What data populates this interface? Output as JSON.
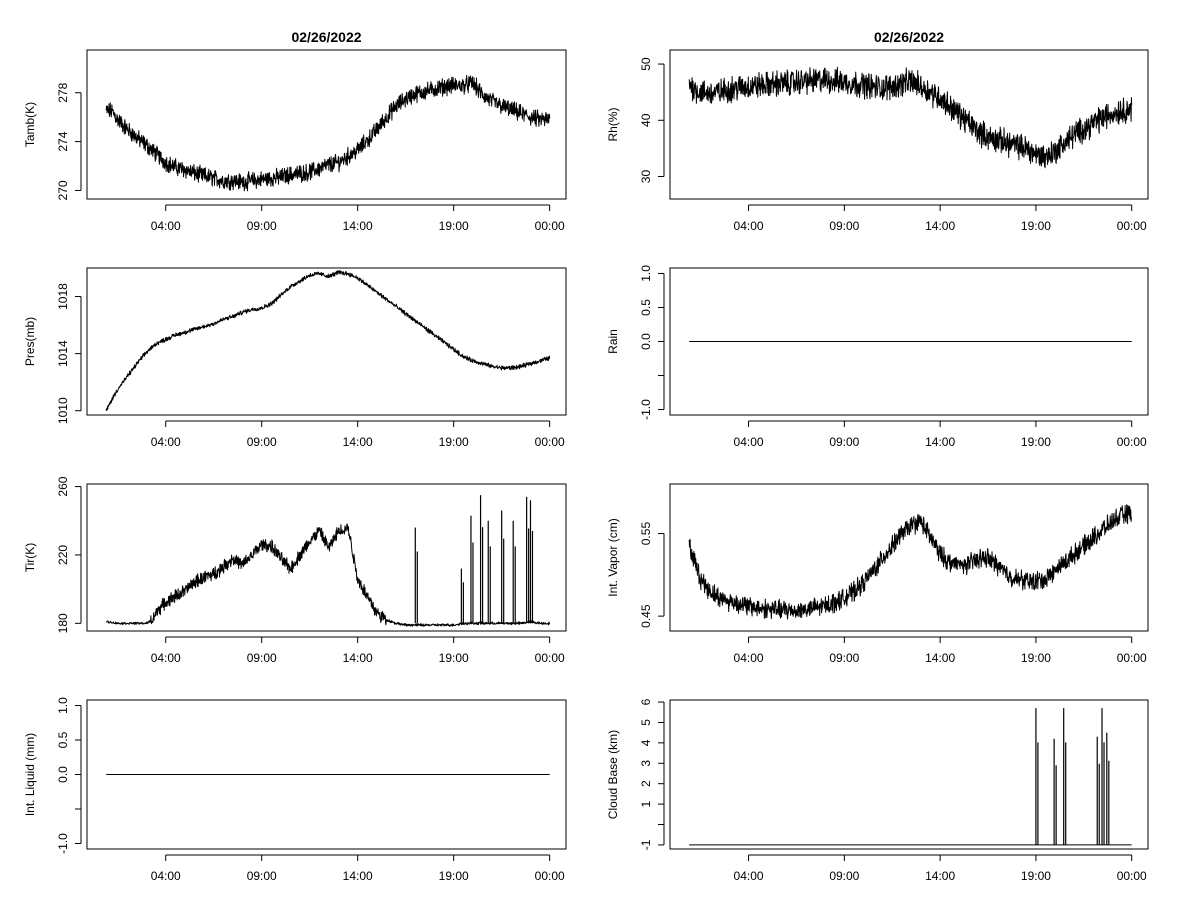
{
  "chart_data": [
    {
      "id": "tamb",
      "type": "line",
      "title": "02/26/2022",
      "ylabel": "Tamb(K)",
      "xticks": [
        "04:00",
        "09:00",
        "14:00",
        "19:00",
        "00:00"
      ],
      "xtick_values": [
        4,
        9,
        14,
        19,
        24
      ],
      "xlim": [
        -0.1,
        24.85
      ],
      "ylim": [
        269.3,
        281.5
      ],
      "yticks": [
        270,
        274,
        278
      ],
      "series": [
        {
          "x": [
            0.9,
            1.2,
            1.5,
            2,
            2.5,
            3,
            3.5,
            4,
            4.5,
            5,
            5.5,
            6,
            6.5,
            7,
            7.5,
            8,
            8.5,
            9,
            9.5,
            10,
            10.5,
            11,
            11.5,
            12,
            12.5,
            13,
            13.5,
            14,
            14.5,
            15,
            15.5,
            16,
            16.5,
            17,
            17.5,
            18,
            18.5,
            19,
            19.5,
            20,
            20.5,
            21,
            21.5,
            22,
            22.5,
            23,
            23.5,
            24
          ],
          "y": [
            276.5,
            276.5,
            275.8,
            275.0,
            274.3,
            273.7,
            273.0,
            272.3,
            271.9,
            271.7,
            271.4,
            271.2,
            271.0,
            270.8,
            270.8,
            270.7,
            270.8,
            270.9,
            271.0,
            271.1,
            271.3,
            271.4,
            271.5,
            271.8,
            272.1,
            272.3,
            272.8,
            273.3,
            274.1,
            275.0,
            276.0,
            276.9,
            277.5,
            277.9,
            278.1,
            278.3,
            278.5,
            278.6,
            278.6,
            278.8,
            277.8,
            277.3,
            276.9,
            276.6,
            276.3,
            276.0,
            275.8,
            275.8
          ]
        }
      ]
    },
    {
      "id": "rh",
      "type": "line",
      "title": "02/26/2022",
      "ylabel": "Rh(%)",
      "xticks": [
        "04:00",
        "09:00",
        "14:00",
        "19:00",
        "00:00"
      ],
      "xtick_values": [
        4,
        9,
        14,
        19,
        24
      ],
      "xlim": [
        -0.1,
        24.85
      ],
      "ylim": [
        26,
        52.5
      ],
      "yticks": [
        30,
        40,
        50
      ],
      "series": [
        {
          "x": [
            0.9,
            1.2,
            1.5,
            2,
            2.5,
            3,
            3.5,
            4,
            4.5,
            5,
            5.5,
            6,
            6.5,
            7,
            7.5,
            8,
            8.5,
            9,
            9.5,
            10,
            10.5,
            11,
            11.5,
            12,
            12.5,
            13,
            13.5,
            14,
            14.5,
            15,
            15.5,
            16,
            16.5,
            17,
            17.5,
            18,
            18.5,
            19,
            19.5,
            20,
            20.5,
            21,
            21.5,
            22,
            22.5,
            23,
            23.5,
            24
          ],
          "y": [
            46.5,
            45.5,
            45.0,
            44.8,
            45.0,
            45.5,
            45.8,
            46.0,
            46.2,
            46.3,
            46.5,
            46.6,
            46.8,
            47.0,
            47.0,
            47.2,
            47.0,
            46.8,
            46.5,
            46.3,
            46.0,
            45.8,
            46.0,
            46.5,
            47.0,
            46.0,
            45.0,
            44.0,
            42.5,
            41.0,
            39.5,
            38.0,
            37.0,
            36.5,
            36.0,
            35.5,
            35.0,
            34.0,
            33.5,
            34.5,
            36.0,
            37.5,
            38.5,
            39.5,
            40.5,
            41.2,
            41.8,
            42.0
          ]
        }
      ]
    },
    {
      "id": "pres",
      "type": "line",
      "title": "",
      "ylabel": "Pres(mb)",
      "xticks": [
        "04:00",
        "09:00",
        "14:00",
        "19:00",
        "00:00"
      ],
      "xtick_values": [
        4,
        9,
        14,
        19,
        24
      ],
      "xlim": [
        -0.1,
        24.85
      ],
      "ylim": [
        1009.7,
        1020.0
      ],
      "yticks": [
        1010,
        1014,
        1018
      ],
      "series": [
        {
          "x": [
            0.9,
            1.2,
            1.5,
            2,
            2.5,
            3,
            3.5,
            4,
            4.5,
            5,
            5.5,
            6,
            6.5,
            7,
            7.5,
            8,
            8.5,
            9,
            9.5,
            10,
            10.5,
            11,
            11.5,
            12,
            12.5,
            13,
            13.5,
            14,
            14.5,
            15,
            15.5,
            16,
            16.5,
            17,
            17.5,
            18,
            18.5,
            19,
            19.5,
            20,
            20.5,
            21,
            21.5,
            22,
            22.5,
            23,
            23.5,
            24
          ],
          "y": [
            1010.0,
            1010.8,
            1011.5,
            1012.4,
            1013.3,
            1014.1,
            1014.7,
            1015.0,
            1015.3,
            1015.5,
            1015.7,
            1015.9,
            1016.1,
            1016.4,
            1016.6,
            1016.9,
            1017.1,
            1017.2,
            1017.5,
            1018.1,
            1018.7,
            1019.1,
            1019.5,
            1019.6,
            1019.4,
            1019.7,
            1019.6,
            1019.3,
            1018.8,
            1018.3,
            1017.8,
            1017.3,
            1016.8,
            1016.3,
            1015.8,
            1015.3,
            1014.8,
            1014.3,
            1013.8,
            1013.5,
            1013.3,
            1013.1,
            1013.0,
            1013.0,
            1013.1,
            1013.3,
            1013.5,
            1013.7
          ]
        }
      ]
    },
    {
      "id": "rain",
      "type": "line",
      "title": "",
      "ylabel": "Rain",
      "xticks": [
        "04:00",
        "09:00",
        "14:00",
        "19:00",
        "00:00"
      ],
      "xtick_values": [
        4,
        9,
        14,
        19,
        24
      ],
      "xlim": [
        -0.1,
        24.85
      ],
      "ylim": [
        -1.08,
        1.08
      ],
      "yticks": [
        -1.0,
        -0.5,
        0.0,
        0.5,
        1.0
      ],
      "ytick_labels": [
        "-1.0",
        "",
        "0.0",
        "0.5",
        "1.0"
      ],
      "series": [
        {
          "x": [
            0.9,
            24
          ],
          "y": [
            0,
            0
          ]
        }
      ]
    },
    {
      "id": "tir",
      "type": "line",
      "title": "",
      "ylabel": "Tir(K)",
      "xticks": [
        "04:00",
        "09:00",
        "14:00",
        "19:00",
        "00:00"
      ],
      "xtick_values": [
        4,
        9,
        14,
        19,
        24
      ],
      "xlim": [
        -0.1,
        24.85
      ],
      "ylim": [
        175.5,
        261.5
      ],
      "yticks": [
        180,
        220,
        260
      ],
      "series": [
        {
          "x": [
            0.9,
            1.5,
            2,
            2.5,
            3,
            3.3,
            3.6,
            4,
            4.5,
            5,
            5.5,
            6,
            6.5,
            7,
            7.5,
            8,
            8.5,
            9,
            9.5,
            10,
            10.5,
            11,
            11.5,
            12,
            12.5,
            13,
            13.5,
            14,
            14.5,
            15,
            15.5,
            16,
            16.5,
            17,
            17.5,
            18,
            18.5,
            19,
            19.5,
            20,
            20.5,
            21,
            21.5,
            22,
            22.5,
            23,
            23.5,
            24
          ],
          "y": [
            181,
            180,
            180,
            180,
            180,
            182,
            188,
            192,
            196,
            199,
            204,
            207,
            209,
            213,
            218,
            214,
            220,
            226,
            225,
            218,
            212,
            220,
            228,
            234,
            224,
            234,
            236,
            206,
            196,
            186,
            182,
            180,
            179,
            179,
            179,
            179,
            179,
            179,
            180,
            180,
            180,
            180,
            180,
            180,
            180,
            181,
            180,
            180
          ]
        }
      ],
      "spikes": [
        {
          "x": 17.0,
          "y": 236
        },
        {
          "x": 19.4,
          "y": 212
        },
        {
          "x": 19.9,
          "y": 243
        },
        {
          "x": 20.4,
          "y": 255
        },
        {
          "x": 20.8,
          "y": 240
        },
        {
          "x": 21.5,
          "y": 246
        },
        {
          "x": 22.1,
          "y": 240
        },
        {
          "x": 22.8,
          "y": 254
        },
        {
          "x": 23.0,
          "y": 252
        }
      ]
    },
    {
      "id": "vapor",
      "type": "line",
      "title": "",
      "ylabel": "Int. Vapor (cm)",
      "xticks": [
        "04:00",
        "09:00",
        "14:00",
        "19:00",
        "00:00"
      ],
      "xtick_values": [
        4,
        9,
        14,
        19,
        24
      ],
      "xlim": [
        -0.1,
        24.85
      ],
      "ylim": [
        0.432,
        0.61
      ],
      "yticks": [
        0.45,
        0.55
      ],
      "series": [
        {
          "x": [
            0.9,
            1.2,
            1.5,
            2,
            2.5,
            3,
            3.5,
            4,
            4.5,
            5,
            5.5,
            6,
            6.5,
            7,
            7.5,
            8,
            8.5,
            9,
            9.5,
            10,
            10.5,
            11,
            11.5,
            12,
            12.5,
            13,
            13.5,
            14,
            14.5,
            15,
            15.5,
            16,
            16.5,
            17,
            17.5,
            18,
            18.5,
            19,
            19.5,
            20,
            20.5,
            21,
            21.5,
            22,
            22.5,
            23,
            23.5,
            24
          ],
          "y": [
            0.535,
            0.515,
            0.495,
            0.48,
            0.472,
            0.468,
            0.465,
            0.462,
            0.46,
            0.459,
            0.458,
            0.457,
            0.457,
            0.458,
            0.46,
            0.463,
            0.467,
            0.472,
            0.48,
            0.49,
            0.505,
            0.52,
            0.535,
            0.55,
            0.56,
            0.565,
            0.545,
            0.525,
            0.515,
            0.512,
            0.513,
            0.52,
            0.52,
            0.512,
            0.5,
            0.495,
            0.493,
            0.492,
            0.495,
            0.505,
            0.515,
            0.525,
            0.535,
            0.545,
            0.555,
            0.565,
            0.572,
            0.575
          ]
        }
      ]
    },
    {
      "id": "liquid",
      "type": "line",
      "title": "",
      "ylabel": "Int. Liquid (mm)",
      "xticks": [
        "04:00",
        "09:00",
        "14:00",
        "19:00",
        "00:00"
      ],
      "xtick_values": [
        4,
        9,
        14,
        19,
        24
      ],
      "xlim": [
        -0.1,
        24.85
      ],
      "ylim": [
        -1.08,
        1.08
      ],
      "yticks": [
        -1.0,
        -0.5,
        0.0,
        0.5,
        1.0
      ],
      "ytick_labels": [
        "-1.0",
        "",
        "0.0",
        "0.5",
        "1.0"
      ],
      "series": [
        {
          "x": [
            0.9,
            24
          ],
          "y": [
            0,
            0
          ]
        }
      ]
    },
    {
      "id": "cloud",
      "type": "line",
      "title": "",
      "ylabel": "Cloud Base (km)",
      "xticks": [
        "04:00",
        "09:00",
        "14:00",
        "19:00",
        "00:00"
      ],
      "xtick_values": [
        4,
        9,
        14,
        19,
        24
      ],
      "xlim": [
        -0.1,
        24.85
      ],
      "ylim": [
        -1.2,
        6.1
      ],
      "yticks": [
        -1,
        0,
        1,
        2,
        3,
        4,
        5,
        6
      ],
      "ytick_labels": [
        "-1",
        "",
        "1",
        "2",
        "3",
        "4",
        "5",
        "6"
      ],
      "series": [
        {
          "x": [
            0.9,
            24
          ],
          "y": [
            -1,
            -1
          ]
        }
      ],
      "spikes": [
        {
          "x": 19.0,
          "y": 5.7
        },
        {
          "x": 19.95,
          "y": 4.2
        },
        {
          "x": 20.45,
          "y": 5.7
        },
        {
          "x": 22.2,
          "y": 4.3
        },
        {
          "x": 22.45,
          "y": 5.7
        },
        {
          "x": 22.7,
          "y": 4.5
        }
      ]
    }
  ]
}
